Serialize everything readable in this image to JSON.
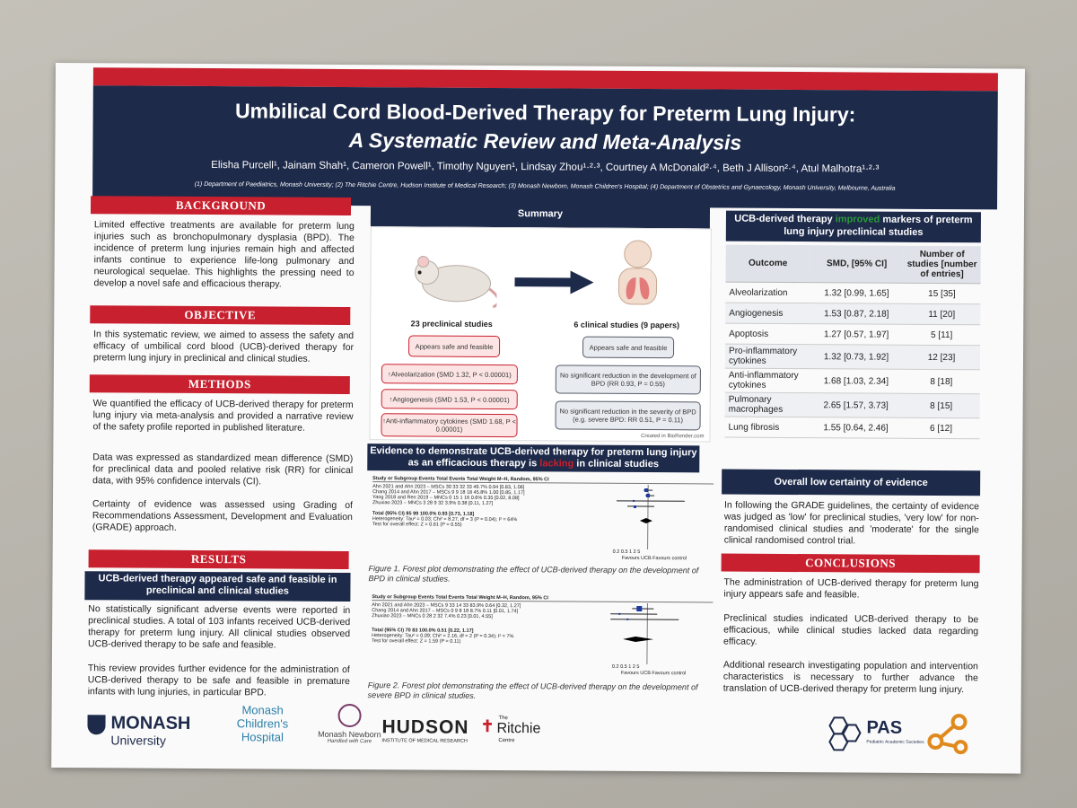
{
  "title": {
    "line1": "Umbilical Cord Blood-Derived Therapy for Preterm Lung Injury:",
    "line2": "A Systematic Review and Meta-Analysis"
  },
  "authors": "Elisha Purcell¹, Jainam Shah¹, Cameron Powell¹, Timothy Nguyen¹, Lindsay Zhou¹·²·³, Courtney A McDonald²·⁴, Beth J Allison²·⁴, Atul Malhotra¹·²·³",
  "affiliations": "(1) Department of Paediatrics, Monash University; (2) The Ritchie Centre, Hudson Institute of Medical Research; (3) Monash Newborn, Monash Children's Hospital; (4) Department of Obstetrics and Gynaecology, Monash University, Melbourne, Australia",
  "background": {
    "heading": "BACKGROUND",
    "text": "Limited effective treatments are available for preterm lung injuries such as bronchopulmonary dysplasia (BPD). The incidence of preterm lung injuries remain high and affected infants continue to experience life-long pulmonary and neurological sequelae. This highlights the pressing need to develop a novel safe and efficacious therapy."
  },
  "objective": {
    "heading": "OBJECTIVE",
    "text": "In this systematic review, we aimed to assess the safety and efficacy of umbilical cord blood (UCB)-derived therapy for preterm lung injury in preclinical and clinical studies."
  },
  "methods": {
    "heading": "METHODS",
    "p1": "We quantified the efficacy of UCB-derived therapy for preterm lung injury via meta-analysis and provided a narrative review of the safety profile reported in published literature.",
    "p2": "Data was expressed as standardized mean difference (SMD) for preclinical data and pooled relative risk (RR) for clinical data, with 95% confidence intervals (CI).",
    "p3": "Certainty of evidence was assessed using Grading of Recommendations Assessment, Development and Evaluation (GRADE) approach."
  },
  "results": {
    "heading": "RESULTS",
    "subheading": "UCB-derived therapy appeared safe and feasible in preclinical and clinical studies",
    "p1": "No statistically significant adverse events were reported in preclinical studies. A total of 103 infants received UCB-derived therapy for preterm lung injury. All clinical studies observed UCB-derived therapy to be safe and feasible.",
    "p2": "This review provides further evidence for the administration of UCB-derived therapy to be safe and feasible in premature infants with lung injuries, in particular BPD."
  },
  "summary": {
    "heading": "Summary",
    "preclinical_label": "23 preclinical studies",
    "clinical_label": "6 clinical studies (9 papers)",
    "pre_safe": "Appears safe and feasible",
    "pre_alv": "↑Alveolarization (SMD 1.32, P < 0.00001)",
    "pre_ang": "↑Angiogenesis (SMD 1.53, P < 0.00001)",
    "pre_inf": "↑Anti-inflammatory cytokines (SMD 1.68, P < 0.00001)",
    "cli_safe": "Appears safe and feasible",
    "cli_bpd": "No significant reduction in the development of BPD (RR 0.93, P = 0.55)",
    "cli_sev": "No significant reduction in the severity of BPD (e.g. severe BPD: RR 0.51, P = 0.11)",
    "credit": "Created in BioRender.com"
  },
  "evidence": {
    "heading_a": "Evidence to demonstrate UCB-derived therapy for preterm lung injury as an efficacious therapy is ",
    "heading_b": "lacking",
    "heading_c": " in clinical studies"
  },
  "forest1": {
    "header": "Study or Subgroup   Events Total Events Total Weight   M–H, Random, 95% CI",
    "rows": [
      "Ahn 2021 and Ahn 2023 – MSCs   30  33  32  33  49.7%  0.94 [0.83, 1.06]",
      "Chang 2014 and Ahn 2017 – MSCs   9  9  18  18  45.8%  1.00 [0.85, 1.17]",
      "Yang 2018 and Ren 2019 – MNCs   0  15  1  16  0.6%  0.35 [0.02, 8.08]",
      "Zhuxiao 2023 – MNCs   3  28  9  32  3.9%  0.38 [0.11, 1.27]"
    ],
    "total": "Total (95% CI)   85   99  100.0%  0.93 [0.73, 1.18]",
    "het": "Heterogeneity: Tau² = 0.03; Chi² = 8.27, df = 3 (P = 0.04); I² = 64%",
    "test": "Test for overall effect: Z = 0.61 (P = 0.55)",
    "axis": "0.2   0.5   1   2   5",
    "favours": "Favours UCB  Favours control",
    "caption": "Figure 1. Forest plot demonstrating the effect of UCB-derived therapy on the development of BPD in clinical studies."
  },
  "forest2": {
    "header": "Study or Subgroup   Events Total Events Total Weight   M–H, Random, 95% CI",
    "rows": [
      "Ahn 2021 and Ahn 2023 – MSCs   9  33  14  33  83.9%  0.64 [0.32, 1.27]",
      "Chang 2014 and Ahn 2017 – MSCs   0  9  8  18  8.7%  0.11 [0.01, 1.74]",
      "Zhuxiao 2023 – MNCs   0  28  2  32  7.4%  0.23 [0.01, 4.55]"
    ],
    "total": "Total (95% CI)   70   83  100.0%  0.51 [0.22, 1.17]",
    "het": "Heterogeneity: Tau² = 0.09; Chi² = 2.16, df = 2 (P = 0.34); I² = 7%",
    "test": "Test for overall effect: Z = 1.59 (P = 0.11)",
    "axis": "0.2   0.5   1   2   5",
    "favours": "Favours UCB  Favours control",
    "caption": "Figure 2. Forest plot demonstrating the effect of UCB-derived therapy on the development of severe BPD in clinical studies."
  },
  "table": {
    "heading_a": "UCB-derived therapy ",
    "heading_b": "improved",
    "heading_c": " markers of preterm lung injury preclinical studies",
    "col1": "Outcome",
    "col2": "SMD, [95% CI]",
    "col3": "Number of studies [number of entries]",
    "rows": [
      {
        "outcome": "Alveolarization",
        "smd": "1.32 [0.99, 1.65]",
        "n": "15 [35]"
      },
      {
        "outcome": "Angiogenesis",
        "smd": "1.53 [0.87, 2.18]",
        "n": "11 [20]"
      },
      {
        "outcome": "Apoptosis",
        "smd": "1.27 [0.57, 1.97]",
        "n": "5 [11]"
      },
      {
        "outcome": "Pro-inflammatory cytokines",
        "smd": "1.32 [0.73, 1.92]",
        "n": "12 [23]"
      },
      {
        "outcome": "Anti-inflammatory cytokines",
        "smd": "1.68 [1.03, 2.34]",
        "n": "8 [18]"
      },
      {
        "outcome": "Pulmonary macrophages",
        "smd": "2.65 [1.57, 3.73]",
        "n": "8 [15]"
      },
      {
        "outcome": "Lung fibrosis",
        "smd": "1.55 [0.64, 2.46]",
        "n": "6 [12]"
      }
    ]
  },
  "certainty": {
    "heading": "Overall low certainty of evidence",
    "text": "In following the GRADE guidelines, the certainty of evidence was judged as 'low' for preclinical studies, 'very low' for non-randomised clinical studies and 'moderate' for the single clinical randomised control trial."
  },
  "conclusions": {
    "heading": "CONCLUSIONS",
    "p1": "The administration of UCB-derived therapy for preterm lung injury appears safe and feasible.",
    "p2": "Preclinical studies indicated UCB-derived therapy to be efficacious, while clinical studies lacked data regarding efficacy.",
    "p3": "Additional research investigating population and intervention characteristics is necessary to further advance the translation of UCB-derived therapy for preterm lung injury."
  },
  "logos": {
    "monash": "MONASH",
    "monash_sub": "University",
    "mch": "Monash Children's Hospital",
    "newborn": "Monash Newborn",
    "newborn_sub": "Handled with Care",
    "hudson": "HUDSON",
    "hudson_sub": "INSTITUTE OF MEDICAL RESEARCH",
    "ritchie_the": "The",
    "ritchie": "Ritchie",
    "ritchie_sub": "Centre",
    "pas": "PAS",
    "pas_sub": "Pediatric Academic Societies"
  },
  "colors": {
    "red": "#c8202e",
    "navy": "#1d2a4a",
    "green": "#2a9a3a"
  }
}
